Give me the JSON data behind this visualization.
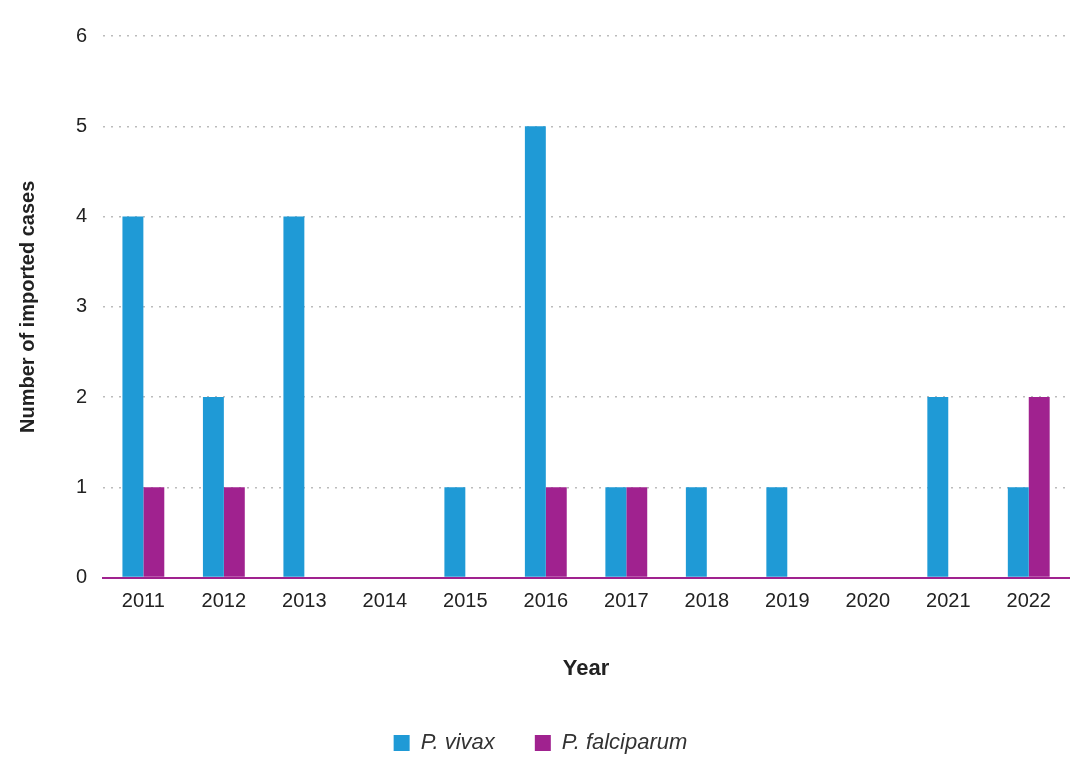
{
  "chart_data": {
    "type": "bar",
    "xlabel": "Year",
    "ylabel": "Number of imported cases",
    "categories": [
      "2011",
      "2012",
      "2013",
      "2014",
      "2015",
      "2016",
      "2017",
      "2018",
      "2019",
      "2020",
      "2021",
      "2022"
    ],
    "series": [
      {
        "name": "P. vivax",
        "color": "#1f9ad6",
        "values": [
          4,
          2,
          4,
          0,
          1,
          5,
          1,
          1,
          1,
          0,
          2,
          1
        ]
      },
      {
        "name": "P. falciparum",
        "color": "#a0228f",
        "values": [
          1,
          1,
          0,
          0,
          0,
          1,
          1,
          0,
          0,
          0,
          0,
          2
        ]
      }
    ],
    "ylim": [
      0,
      6
    ],
    "yticks": [
      0,
      1,
      2,
      3,
      4,
      5,
      6
    ],
    "grid": "y",
    "legend": "bottom"
  }
}
